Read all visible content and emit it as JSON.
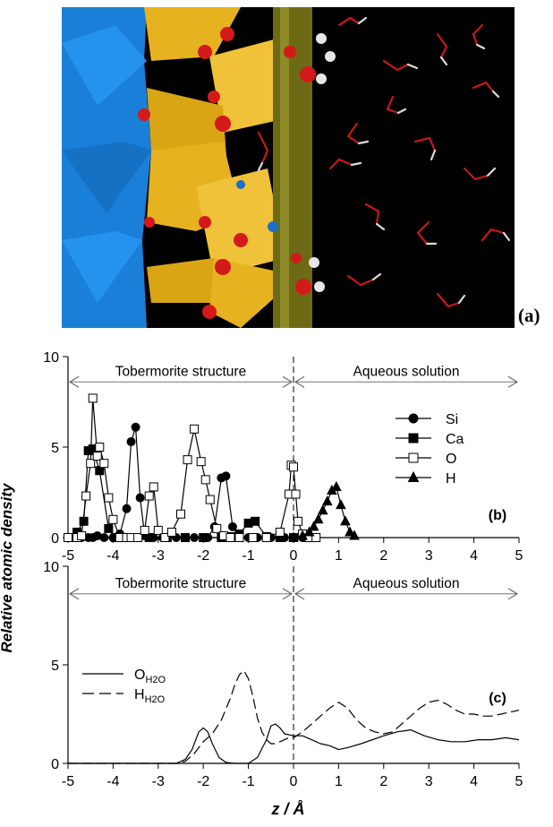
{
  "panel_a": {
    "label": "(a)"
  },
  "y_axis_title": "Relative atomic density",
  "x_axis_title": "z  /  Å",
  "chart_data": [
    {
      "type": "line",
      "panel_label": "(b)",
      "xlim": [
        -5,
        5
      ],
      "ylim": [
        0,
        10
      ],
      "x_ticks": [
        -5,
        -4,
        -3,
        -2,
        -1,
        0,
        1,
        2,
        3,
        4,
        5
      ],
      "y_ticks": [
        0,
        5,
        10
      ],
      "grid": false,
      "legend_position": "top-right",
      "region_divider_x": 0,
      "regions": [
        {
          "label": "Tobermorite structure",
          "from": -5,
          "to": 0
        },
        {
          "label": "Aqueous solution",
          "from": 0,
          "to": 5
        }
      ],
      "series": [
        {
          "name": "Si",
          "marker": "circle-filled",
          "x": [
            -4.9,
            -4.7,
            -4.55,
            -4.45,
            -4.35,
            -4.2,
            -4.0,
            -3.85,
            -3.7,
            -3.6,
            -3.5,
            -3.4,
            -3.3,
            -3.1,
            -2.9,
            -2.6,
            -2.2,
            -1.9,
            -1.75,
            -1.6,
            -1.5,
            -1.35,
            -1.2,
            -1.0,
            -0.8,
            -0.5,
            -0.2,
            0.0,
            0.2,
            0.5
          ],
          "y": [
            0,
            0,
            0,
            0,
            0.1,
            0,
            0,
            0.2,
            1.6,
            5.3,
            6.1,
            2.2,
            0.1,
            0,
            0,
            0,
            0,
            0,
            0.6,
            3.3,
            3.4,
            0.6,
            0,
            0,
            0,
            0,
            0,
            0,
            0,
            0
          ]
        },
        {
          "name": "Ca",
          "marker": "square-filled",
          "x": [
            -5.0,
            -4.8,
            -4.65,
            -4.55,
            -4.45,
            -4.3,
            -4.1,
            -3.95,
            -3.6,
            -3.2,
            -2.8,
            -2.4,
            -2.0,
            -1.6,
            -1.4,
            -1.2,
            -1.0,
            -0.85,
            -0.6,
            -0.3,
            0.0,
            0.3
          ],
          "y": [
            0,
            0.3,
            0.9,
            4.8,
            4.9,
            3.7,
            0.5,
            0,
            0,
            0,
            0,
            0,
            0,
            0,
            0.05,
            0.2,
            0.8,
            0.9,
            0.05,
            0,
            0,
            0
          ]
        },
        {
          "name": "O",
          "marker": "square-open",
          "x": [
            -5.0,
            -4.8,
            -4.7,
            -4.6,
            -4.5,
            -4.45,
            -4.35,
            -4.3,
            -4.2,
            -4.1,
            -4.0,
            -3.85,
            -3.7,
            -3.6,
            -3.45,
            -3.3,
            -3.2,
            -3.1,
            -3.0,
            -2.85,
            -2.7,
            -2.5,
            -2.35,
            -2.2,
            -2.05,
            -1.95,
            -1.85,
            -1.7,
            -1.55,
            -1.4,
            -1.2,
            -0.9,
            -0.6,
            -0.3,
            -0.1,
            -0.05,
            0.0,
            0.05,
            0.1,
            0.2,
            0.35,
            0.5
          ],
          "y": [
            0,
            0,
            0.1,
            2.3,
            4.1,
            7.7,
            4.5,
            5.0,
            4.1,
            2.2,
            1.0,
            0,
            0,
            0,
            0,
            0.4,
            2.3,
            2.8,
            0.4,
            0,
            0.3,
            1.3,
            4.3,
            6.0,
            4.2,
            3.2,
            2.1,
            0.5,
            0.1,
            0,
            0,
            0,
            0,
            0.3,
            2.4,
            4.0,
            3.9,
            2.4,
            0.9,
            0.2,
            0,
            0
          ]
        },
        {
          "name": "H",
          "marker": "triangle-filled",
          "x": [
            0.0,
            0.2,
            0.35,
            0.45,
            0.55,
            0.65,
            0.75,
            0.85,
            0.95,
            1.05,
            1.15,
            1.25,
            1.35
          ],
          "y": [
            0,
            0.1,
            0.3,
            0.6,
            1.0,
            1.5,
            2.0,
            2.6,
            2.8,
            1.8,
            0.9,
            0.3,
            0.1
          ]
        }
      ]
    },
    {
      "type": "line",
      "panel_label": "(c)",
      "xlim": [
        -5,
        5
      ],
      "ylim": [
        0,
        10
      ],
      "x_ticks": [
        -5,
        -4,
        -3,
        -2,
        -1,
        0,
        1,
        2,
        3,
        4,
        5
      ],
      "y_ticks": [
        0,
        5,
        10
      ],
      "grid": false,
      "legend_position": "top-left",
      "region_divider_x": 0,
      "regions": [
        {
          "label": "Tobermorite structure",
          "from": -5,
          "to": 0
        },
        {
          "label": "Aqueous solution",
          "from": 0,
          "to": 5
        }
      ],
      "series": [
        {
          "name": "O",
          "name_subscript": "H2O",
          "line": "solid",
          "x": [
            -5.0,
            -3.0,
            -2.6,
            -2.4,
            -2.25,
            -2.1,
            -2.0,
            -1.9,
            -1.8,
            -1.65,
            -1.5,
            -1.3,
            -1.0,
            -0.8,
            -0.6,
            -0.5,
            -0.4,
            -0.3,
            -0.2,
            0.0,
            0.2,
            0.4,
            0.6,
            0.8,
            1.0,
            1.2,
            1.5,
            2.0,
            2.3,
            2.6,
            2.9,
            3.2,
            3.5,
            3.8,
            4.1,
            4.4,
            4.7,
            5.0
          ],
          "y": [
            0,
            0,
            0,
            0.2,
            0.7,
            1.6,
            1.8,
            1.6,
            1.0,
            0.3,
            0.05,
            0,
            0,
            0.3,
            1.2,
            1.9,
            2.0,
            1.8,
            1.5,
            1.4,
            1.4,
            1.2,
            1.0,
            0.9,
            0.7,
            0.8,
            1.0,
            1.4,
            1.6,
            1.7,
            1.4,
            1.2,
            1.1,
            1.1,
            1.2,
            1.2,
            1.3,
            1.2
          ]
        },
        {
          "name": "H",
          "name_subscript": "H2O",
          "line": "dashed",
          "x": [
            -5.0,
            -2.6,
            -2.4,
            -2.2,
            -2.0,
            -1.8,
            -1.6,
            -1.4,
            -1.3,
            -1.2,
            -1.1,
            -1.0,
            -0.9,
            -0.8,
            -0.7,
            -0.6,
            -0.5,
            -0.4,
            -0.3,
            -0.2,
            -0.1,
            0.0,
            0.2,
            0.4,
            0.6,
            0.8,
            1.0,
            1.2,
            1.4,
            1.6,
            1.8,
            2.0,
            2.2,
            2.4,
            2.6,
            2.8,
            3.0,
            3.2,
            3.4,
            3.6,
            3.8,
            4.0,
            4.2,
            4.4,
            4.6,
            4.8,
            5.0
          ],
          "y": [
            0,
            0,
            0.1,
            0.5,
            1.1,
            1.5,
            2.2,
            3.3,
            4.0,
            4.5,
            4.7,
            4.3,
            3.4,
            2.3,
            1.6,
            1.2,
            1.0,
            1.0,
            1.1,
            1.2,
            1.3,
            1.3,
            1.6,
            2.0,
            2.4,
            2.8,
            3.1,
            2.8,
            2.2,
            1.8,
            1.6,
            1.5,
            1.6,
            2.0,
            2.4,
            2.8,
            3.1,
            3.2,
            3.0,
            2.7,
            2.5,
            2.5,
            2.4,
            2.4,
            2.5,
            2.6,
            2.7
          ]
        }
      ]
    }
  ]
}
